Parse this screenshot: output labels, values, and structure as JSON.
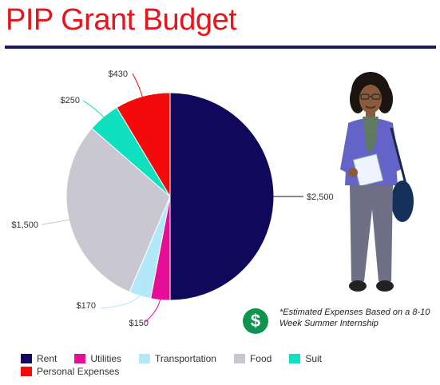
{
  "title": "PIP Grant Budget",
  "note": {
    "badge_symbol": "$",
    "text": "*Estimated Expenses Based on a 8-10 Week Summer Internship",
    "badge_color": "#0f9450"
  },
  "chart_data": {
    "type": "pie",
    "title": "PIP Grant Budget",
    "slices": [
      {
        "label": "Rent",
        "value": 2500,
        "value_label": "$2,500",
        "color": "#10085a"
      },
      {
        "label": "Utilities",
        "value": 150,
        "value_label": "$150",
        "color": "#e60e96"
      },
      {
        "label": "Transportation",
        "value": 170,
        "value_label": "$170",
        "color": "#b3e8f9"
      },
      {
        "label": "Food",
        "value": 1500,
        "value_label": "$1,500",
        "color": "#c9c8d2"
      },
      {
        "label": "Suit",
        "value": 250,
        "value_label": "$250",
        "color": "#0fe0c0"
      },
      {
        "label": "Personal Expenses",
        "value": 430,
        "value_label": "$430",
        "color": "#f40a0a"
      }
    ],
    "legend_placement": "bottom"
  }
}
